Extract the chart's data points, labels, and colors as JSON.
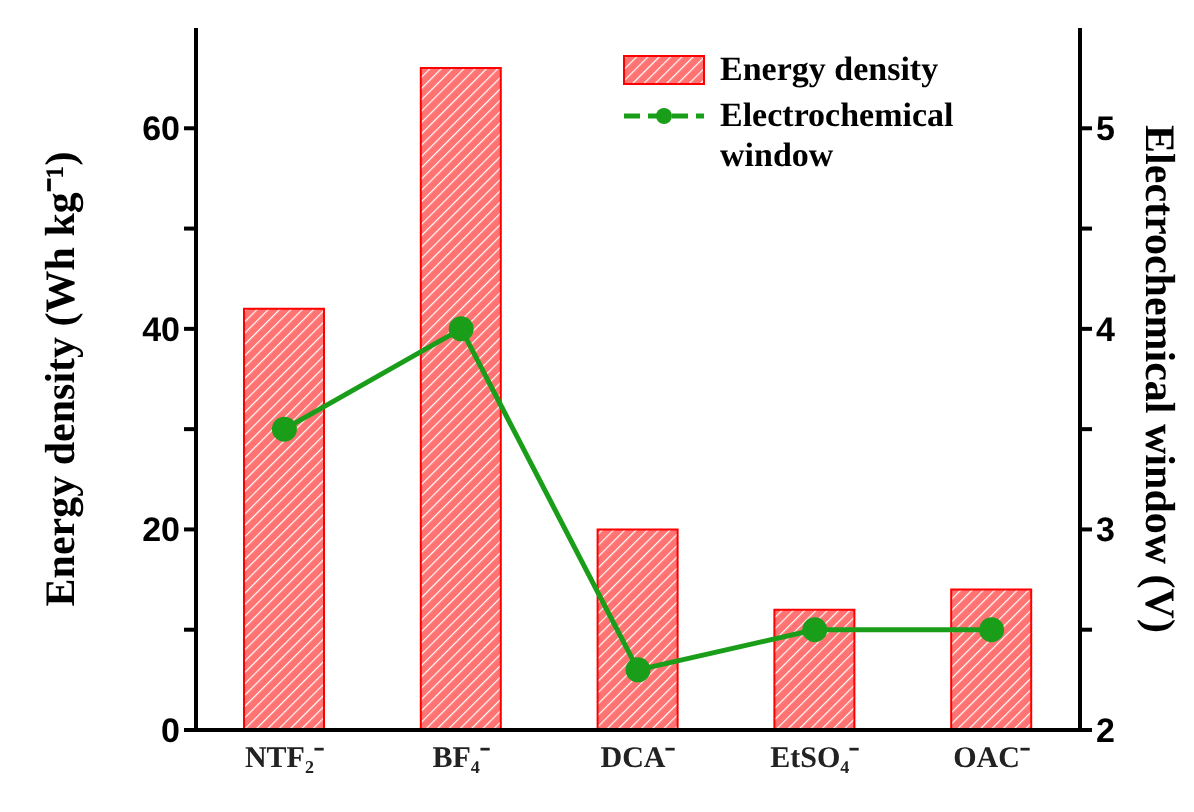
{
  "chart_data": {
    "type": "bar",
    "ylabel": "Energy density (Wh kg⁻¹)",
    "y2label": "Electrochemical  window (V)",
    "categories": [
      "NTF₂⁻",
      "BF₄⁻",
      "DCA⁻",
      "EtSO₄⁻",
      "OAC⁻"
    ],
    "series": [
      {
        "name": "Energy density",
        "color": "#ff0000",
        "values": [
          42,
          66,
          20,
          12,
          14
        ]
      },
      {
        "name": "Electrochemical window",
        "type": "line",
        "axis": "y2",
        "color": "#1a9e1a",
        "marker": "circle",
        "values": [
          3.5,
          4.0,
          2.3,
          2.5,
          2.5
        ]
      }
    ],
    "ylim": [
      0,
      70
    ],
    "yticks": [
      0,
      {
        "value": 10,
        "label": null
      },
      20,
      {
        "value": 30,
        "label": null
      },
      40,
      {
        "value": 50,
        "label": null
      },
      60
    ],
    "y2lim": [
      2,
      5.5
    ],
    "y2ticks": [
      2,
      {
        "value": 2.5,
        "label": null
      },
      3,
      {
        "value": 3.5,
        "label": null
      },
      4,
      {
        "value": 4.5,
        "label": null
      },
      5
    ],
    "legend": "top right",
    "grid": false
  }
}
